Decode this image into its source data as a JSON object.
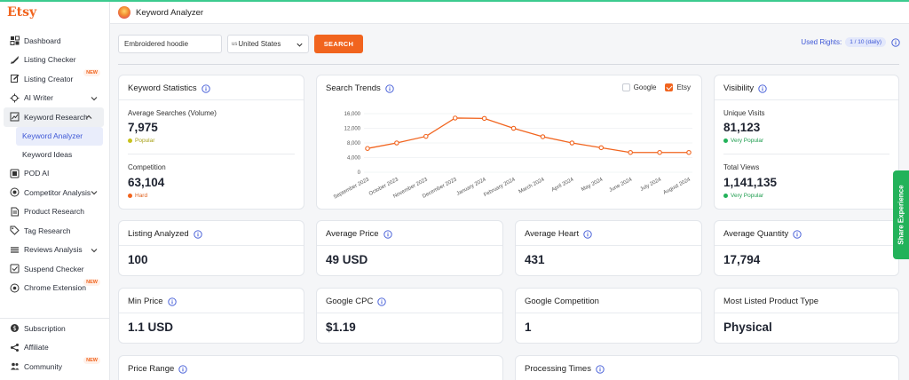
{
  "brand": "Etsy",
  "header": {
    "title": "Keyword Analyzer"
  },
  "sidebar": {
    "items": [
      {
        "label": "Dashboard",
        "icon": "dashboard-icon"
      },
      {
        "label": "Listing Checker",
        "icon": "rocket-icon"
      },
      {
        "label": "Listing Creator",
        "icon": "edit-icon",
        "badge": "NEW"
      },
      {
        "label": "AI Writer",
        "icon": "ai-icon",
        "chevron": "down"
      },
      {
        "label": "Keyword Research",
        "icon": "chart-icon",
        "chevron": "up",
        "active": true
      },
      {
        "label": "POD AI",
        "icon": "pod-icon"
      },
      {
        "label": "Competitor Analysis",
        "icon": "target-icon",
        "chevron": "down"
      },
      {
        "label": "Product Research",
        "icon": "doc-icon"
      },
      {
        "label": "Tag Research",
        "icon": "tag-icon"
      },
      {
        "label": "Reviews Analysis",
        "icon": "stack-icon",
        "chevron": "down"
      },
      {
        "label": "Suspend Checker",
        "icon": "check-icon"
      },
      {
        "label": "Chrome Extension",
        "icon": "chrome-icon",
        "badge": "NEW"
      }
    ],
    "subitems": [
      {
        "label": "Keyword Analyzer",
        "active": true
      },
      {
        "label": "Keyword Ideas"
      }
    ],
    "bottom": [
      {
        "label": "Subscription",
        "icon": "dollar-icon"
      },
      {
        "label": "Affiliate",
        "icon": "share-icon"
      },
      {
        "label": "Community",
        "icon": "users-icon",
        "badge": "NEW"
      }
    ]
  },
  "search": {
    "keyword": "Embroidered hoodie",
    "country_code": "us",
    "country": "United States",
    "button": "SEARCH",
    "rights_label": "Used Rights:",
    "rights_value": "1 / 10 (daily)"
  },
  "keyword_stats": {
    "title": "Keyword Statistics",
    "avg_label": "Average Searches (Volume)",
    "avg_value": "7,975",
    "avg_tag": "Popular",
    "comp_label": "Competition",
    "comp_value": "63,104",
    "comp_tag": "Hard",
    "colors": {
      "popular": "#c8c21c",
      "hard": "#f1641e"
    }
  },
  "trends": {
    "title": "Search Trends",
    "legend_google": "Google",
    "legend_etsy": "Etsy"
  },
  "chart_data": {
    "type": "line",
    "series": [
      {
        "name": "Etsy",
        "values": [
          6500,
          8000,
          9800,
          14800,
          14700,
          12000,
          9700,
          8000,
          6700,
          5400,
          5400,
          5400
        ],
        "color": "#f1641e"
      }
    ],
    "categories": [
      "September 2023",
      "October 2023",
      "November 2023",
      "December 2023",
      "January 2024",
      "February 2024",
      "March 2024",
      "April 2024",
      "May 2024",
      "June 2024",
      "July 2024",
      "August 2024"
    ],
    "yticks": [
      "0",
      "4,000",
      "8,000",
      "12,000",
      "16,000"
    ],
    "ylim": [
      0,
      16000
    ]
  },
  "visibility": {
    "title": "Visibility",
    "unique_label": "Unique Visits",
    "unique_value": "81,123",
    "unique_tag": "Very Popular",
    "views_label": "Total Views",
    "views_value": "1,141,135",
    "views_tag": "Very Popular",
    "tag_color": "#23b25a"
  },
  "metrics": [
    {
      "title": "Listing Analyzed",
      "value": "100",
      "info": true
    },
    {
      "title": "Average Price",
      "value": "49 USD",
      "info": true
    },
    {
      "title": "Average Heart",
      "value": "431",
      "info": true
    },
    {
      "title": "Average Quantity",
      "value": "17,794",
      "info": true
    },
    {
      "title": "Min Price",
      "value": "1.1 USD",
      "info": true
    },
    {
      "title": "Google CPC",
      "value": "$1.19",
      "info": true
    },
    {
      "title": "Google Competition",
      "value": "1",
      "info": false
    },
    {
      "title": "Most Listed Product Type",
      "value": "Physical",
      "info": false
    }
  ],
  "bottom_cards": [
    {
      "title": "Price Range"
    },
    {
      "title": "Processing Times"
    }
  ],
  "share": "Share Experience"
}
